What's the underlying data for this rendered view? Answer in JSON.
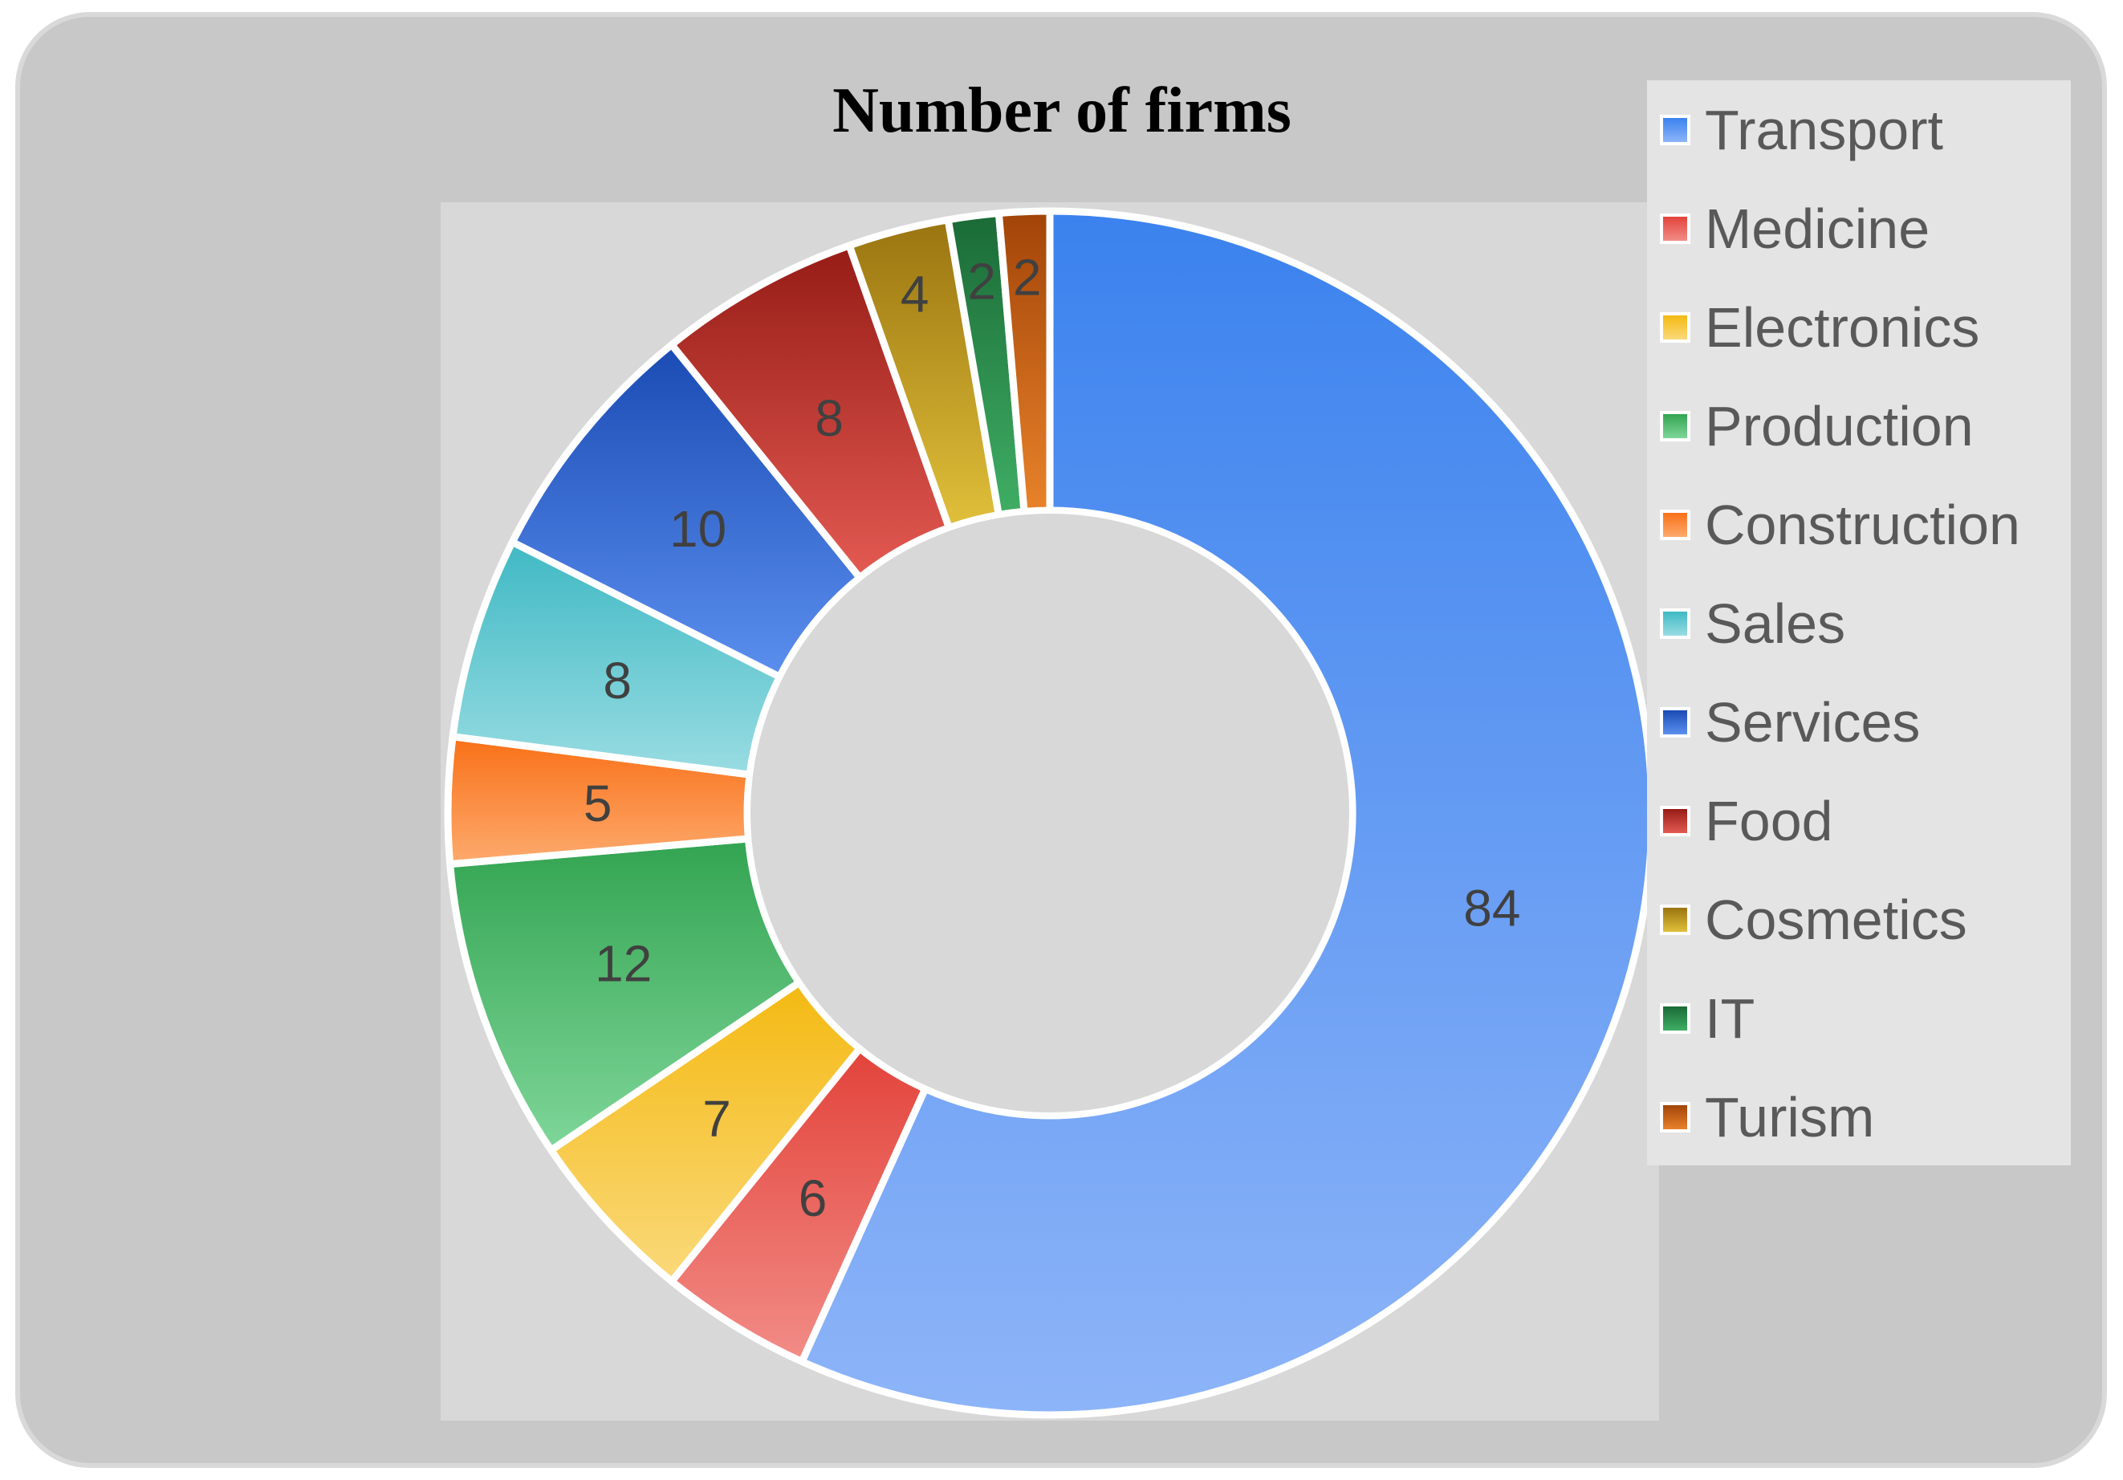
{
  "chart_data": {
    "type": "donut",
    "title": "Number of firms",
    "categories": [
      "Transport",
      "Medicine",
      "Electronics",
      "Production",
      "Construction",
      "Sales",
      "Services",
      "Food",
      "Cosmetics",
      "IT",
      "Turism"
    ],
    "values": [
      84,
      6,
      7,
      12,
      5,
      8,
      10,
      8,
      4,
      2,
      2
    ],
    "data_labels": [
      "84",
      "6",
      "7",
      "12",
      "5",
      "8",
      "10",
      "8",
      "4",
      "2",
      "2"
    ],
    "colors": [
      "#6b9ef4",
      "#ea6a64",
      "#f6c84a",
      "#56bc6e",
      "#fb8e4a",
      "#6ccad2",
      "#2f66d6",
      "#d2403a",
      "#c09a1a",
      "#248a47",
      "#d56a1a"
    ],
    "colors_dark": [
      "#3b82ee",
      "#e2433a",
      "#f4b912",
      "#32a451",
      "#f97017",
      "#3fb9c4",
      "#1a4bb4",
      "#961c16",
      "#9a7410",
      "#1a6a36",
      "#a24408"
    ],
    "colors_light": [
      "#8db4f8",
      "#f28c87",
      "#fad97a",
      "#7fd699",
      "#fdaa6e",
      "#99dce2",
      "#5b8fee",
      "#e35a52",
      "#e0c03a",
      "#3fae64",
      "#e8822a"
    ],
    "legend_position": "right"
  }
}
